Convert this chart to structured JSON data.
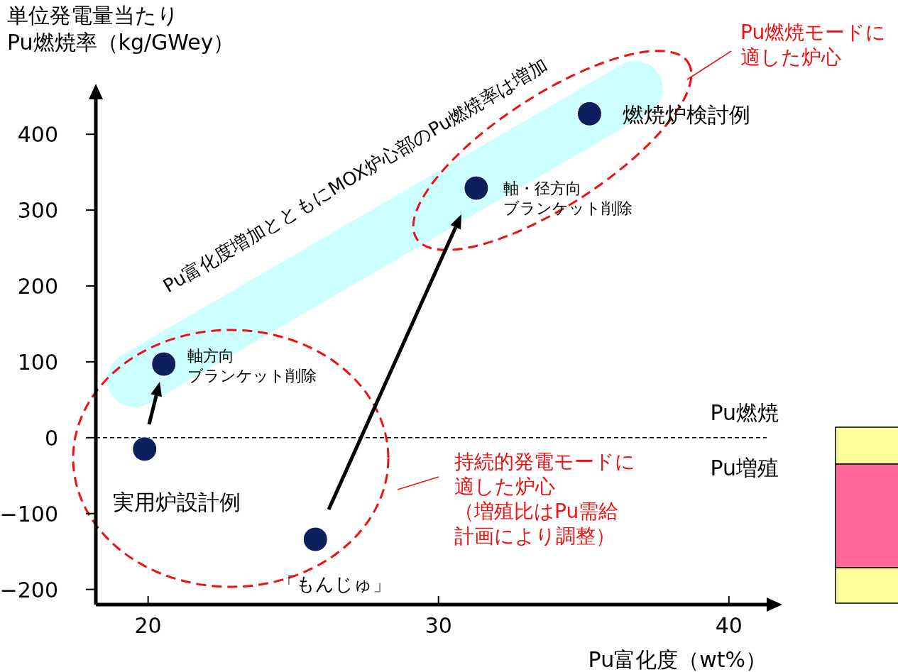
{
  "chart_data": {
    "type": "scatter",
    "xlabel": "Pu富化度（wt%）",
    "ylabel": "単位発電量当たりPu燃焼率（kg/GWey）",
    "xlim": [
      18.2,
      41.3
    ],
    "ylim": [
      -220,
      446
    ],
    "xticks": [
      20,
      30,
      40
    ],
    "yticks": [
      -200,
      -100,
      0,
      100,
      200,
      300,
      400
    ],
    "grid": false,
    "marker": "circle",
    "series": [
      {
        "color": "#0d1f5c",
        "x": [
          19.88,
          20.54,
          25.76,
          31.3,
          35.2
        ],
        "values": [
          -15,
          97,
          -134,
          329,
          427
        ]
      }
    ],
    "ref_lines": [
      {
        "axis": "y",
        "value": 0,
        "color": "#000000",
        "line_style": "dashed"
      }
    ],
    "annotations": [
      {
        "text": "実用炉設計例",
        "x": 19.88,
        "y": -15
      },
      {
        "text": "軸方向ブランケット削除",
        "x": 20.54,
        "y": 97
      },
      {
        "text": "「もんじゅ」",
        "x": 25.76,
        "y": -134
      },
      {
        "text": "軸・径方向ブランケット削除",
        "x": 31.3,
        "y": 329
      },
      {
        "text": "燃焼炉検討例",
        "x": 35.2,
        "y": 427
      },
      "Pu燃焼",
      "Pu増殖",
      "Pu燃焼モードに適した炉心",
      "持続的発電モードに適した炉心（増殖比はPu需給計画により調整）",
      "Pu富化度増加とともにMOX炉心部のPu燃焼率は増加"
    ]
  }
}
